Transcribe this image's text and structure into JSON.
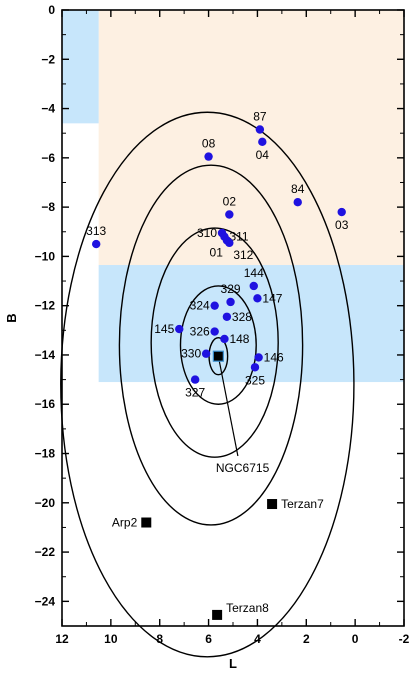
{
  "chart_data": {
    "type": "scatter",
    "xlabel": "L",
    "ylabel": "B",
    "xlim": [
      12,
      -2
    ],
    "ylim": [
      -25,
      0
    ],
    "x_ticks": [
      12,
      10,
      8,
      6,
      4,
      2,
      0,
      -2
    ],
    "y_ticks": [
      0,
      -2,
      -4,
      -6,
      -8,
      -10,
      -12,
      -14,
      -16,
      -18,
      -20,
      -22,
      -24
    ],
    "x_tick_labels": [
      "12",
      "10",
      "8",
      "6",
      "4",
      "2",
      "0",
      "-2"
    ],
    "y_tick_labels": [
      "0",
      "−2",
      "−4",
      "−6",
      "−8",
      "−10",
      "−12",
      "−14",
      "−16",
      "−18",
      "−20",
      "−22",
      "−24"
    ],
    "grid": false,
    "regions": [
      {
        "color": "#fdf0e2",
        "x": [
          10.5,
          -2
        ],
        "y": [
          -10.35,
          0
        ]
      },
      {
        "color": "#c7e6fb",
        "x": [
          12,
          10.5
        ],
        "y": [
          -4.6,
          0
        ]
      },
      {
        "color": "#c7e6fb",
        "x": [
          10.5,
          -2
        ],
        "y": [
          -15.1,
          -10.35
        ]
      }
    ],
    "ellipses": [
      {
        "cx": 5.6,
        "cy": -14.05,
        "rx": 0.38,
        "ry": 0.75
      },
      {
        "cx": 5.6,
        "cy": -13.6,
        "rx": 1.55,
        "ry": 2.4
      },
      {
        "cx": 5.75,
        "cy": -13.5,
        "rx": 2.6,
        "ry": 4.65
      },
      {
        "cx": 5.9,
        "cy": -13.6,
        "rx": 3.75,
        "ry": 7.3
      },
      {
        "cx": 6.05,
        "cy": -15.2,
        "rx": 6.0,
        "ry": 11.05
      }
    ],
    "points_color": "#1f12e0",
    "points": [
      {
        "label": "87",
        "x": 3.9,
        "y": -4.85,
        "label_pos": "above"
      },
      {
        "label": "04",
        "x": 3.8,
        "y": -5.35,
        "label_pos": "below"
      },
      {
        "label": "08",
        "x": 6.0,
        "y": -5.95,
        "label_pos": "above"
      },
      {
        "label": "84",
        "x": 2.35,
        "y": -7.8,
        "label_pos": "above"
      },
      {
        "label": "03",
        "x": 0.55,
        "y": -8.2,
        "label_pos": "below"
      },
      {
        "label": "02",
        "x": 5.15,
        "y": -8.3,
        "label_pos": "above"
      },
      {
        "label": "313",
        "x": 10.6,
        "y": -9.5,
        "label_pos": "above"
      },
      {
        "label": "310",
        "x": 5.45,
        "y": -9.05,
        "label_pos": "left"
      },
      {
        "label": "311",
        "x": 5.35,
        "y": -9.2,
        "label_pos": "right"
      },
      {
        "label": "01",
        "x": 5.25,
        "y": -9.35,
        "label_pos": "below-left"
      },
      {
        "label": "312",
        "x": 5.15,
        "y": -9.45,
        "label_pos": "below-right"
      },
      {
        "label": "144",
        "x": 4.15,
        "y": -11.2,
        "label_pos": "above"
      },
      {
        "label": "329",
        "x": 5.1,
        "y": -11.85,
        "label_pos": "above"
      },
      {
        "label": "324",
        "x": 5.75,
        "y": -12.0,
        "label_pos": "left"
      },
      {
        "label": "147",
        "x": 4.0,
        "y": -11.7,
        "label_pos": "right"
      },
      {
        "label": "328",
        "x": 5.25,
        "y": -12.45,
        "label_pos": "right"
      },
      {
        "label": "145",
        "x": 7.2,
        "y": -12.95,
        "label_pos": "left"
      },
      {
        "label": "326",
        "x": 5.75,
        "y": -13.05,
        "label_pos": "left"
      },
      {
        "label": "148",
        "x": 5.35,
        "y": -13.35,
        "label_pos": "right"
      },
      {
        "label": "330",
        "x": 6.1,
        "y": -13.95,
        "label_pos": "left"
      },
      {
        "label": "146",
        "x": 3.95,
        "y": -14.1,
        "label_pos": "right"
      },
      {
        "label": "325",
        "x": 4.1,
        "y": -14.5,
        "label_pos": "below"
      },
      {
        "label": "327",
        "x": 6.55,
        "y": -15.0,
        "label_pos": "below"
      }
    ],
    "objects": [
      {
        "label": "NGC6715",
        "x": 5.6,
        "y": -14.05,
        "label_pos": "pointer",
        "pointer_to": [
          4.8,
          -18.1
        ]
      },
      {
        "label": "Arp2",
        "x": 8.55,
        "y": -20.8,
        "label_pos": "left"
      },
      {
        "label": "Terzan7",
        "x": 3.4,
        "y": -20.05,
        "label_pos": "right"
      },
      {
        "label": "Terzan8",
        "x": 5.65,
        "y": -24.55,
        "label_pos": "right"
      }
    ]
  }
}
